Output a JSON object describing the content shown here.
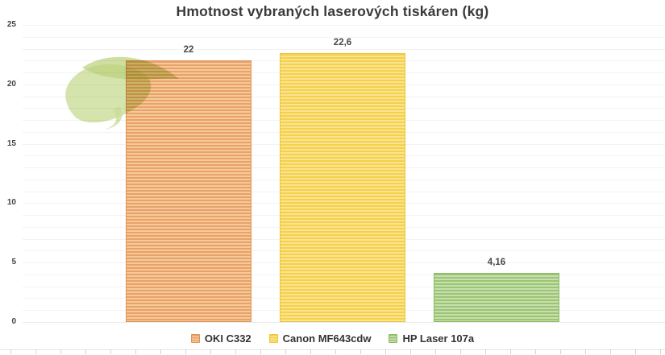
{
  "chart_data": {
    "type": "bar",
    "title": "Hmotnost vybraných laserových tiskáren (kg)",
    "categories": [
      "OKI C332",
      "Canon MF643cdw",
      "HP Laser 107a"
    ],
    "values": [
      22,
      22.6,
      4.16
    ],
    "value_labels": [
      "22",
      "22,6",
      "4,16"
    ],
    "xlabel": "",
    "ylabel": "",
    "ylim": [
      0,
      25
    ],
    "yticks": [
      0,
      5,
      10,
      15,
      20,
      25
    ],
    "minor_grid_step": 1,
    "grid": "horizontal",
    "legend_position": "bottom",
    "bar_pattern": "horizontal-stripes",
    "series_colors": [
      {
        "name": "OKI C332",
        "stripe_dark": "#E9A266",
        "stripe_light": "#F5C99C",
        "border": "#DE9455"
      },
      {
        "name": "Canon MF643cdw",
        "stripe_dark": "#F5D04B",
        "stripe_light": "#FAE491",
        "border": "#EDC63B"
      },
      {
        "name": "HP Laser 107a",
        "stripe_dark": "#9AC672",
        "stripe_light": "#C8DEB0",
        "border": "#8CBB62"
      }
    ]
  },
  "watermark": {
    "name": "leaf-watermark",
    "leaf_light": "#CADD97",
    "leaf_dark": "#BCD37E"
  },
  "colors": {
    "title_text": "#3A3A3A",
    "axis_text": "#444444",
    "gridline": "#F3F3F3",
    "zero_line": "#E9E9E9",
    "ruler_line": "#E6E6E6",
    "ruler_tick": "#D4D4D4",
    "background": "#FFFFFF"
  }
}
